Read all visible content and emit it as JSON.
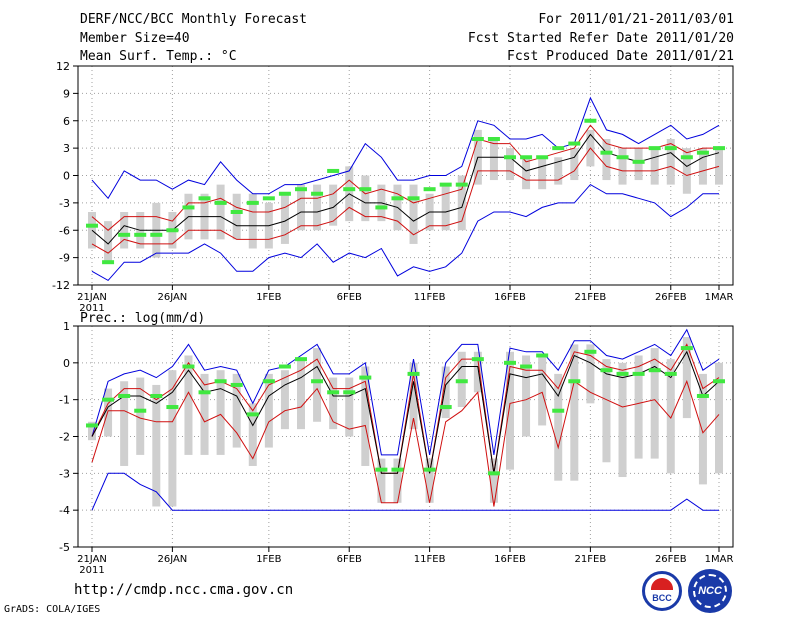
{
  "header": {
    "title": "DERF/NCC/BCC Monthly Forecast",
    "member_size": "Member Size=40",
    "variable": "Mean Surf. Temp.: °C",
    "period": "For 2011/01/21-2011/03/01",
    "started": "Fcst Started Refer Date 2011/01/20",
    "produced": "Fcst Produced Date 2011/01/21"
  },
  "x_axis": {
    "tick_labels": [
      "21JAN",
      "26JAN",
      "1FEB",
      "6FEB",
      "11FEB",
      "16FEB",
      "21FEB",
      "26FEB",
      "1MAR"
    ],
    "tick_days": [
      0,
      5,
      11,
      16,
      21,
      26,
      31,
      36,
      39
    ],
    "year_label": "2011"
  },
  "footer": {
    "url": "http://cmdp.ncc.cma.gov.cn",
    "credit": "GrADS: COLA/IGES",
    "logo_bcc": "BCC",
    "logo_ncc": "NCC"
  },
  "colors": {
    "mean": "#000000",
    "envelope": "#0000dd",
    "stddev": "#d01010",
    "spread_bar": "#cfcfcf",
    "obs_marker": "#40e840",
    "grid": "#a0a0a0"
  },
  "chart_data": [
    {
      "type": "line",
      "label": "",
      "xlabel": "",
      "ylabel": "",
      "ylim": [
        -12,
        12
      ],
      "yticks": [
        -12,
        -9,
        -6,
        -3,
        0,
        3,
        6,
        9,
        12
      ],
      "series": [
        {
          "name": "max",
          "values": [
            -0.5,
            -2.5,
            0.5,
            -0.5,
            -0.5,
            -1.5,
            -0.5,
            -1,
            1.5,
            -0.5,
            -2,
            -2,
            -1,
            -1,
            -0.5,
            0,
            0.5,
            3.5,
            2,
            -0.5,
            -0.5,
            0,
            0,
            1,
            6,
            5.5,
            4,
            4,
            4.5,
            3,
            3.5,
            8.5,
            5,
            4.5,
            3.5,
            4.5,
            5.5,
            4,
            4.5,
            5.5
          ]
        },
        {
          "name": "mean_plus_sd",
          "values": [
            -4.5,
            -6,
            -4.5,
            -4.5,
            -4.5,
            -5,
            -3,
            -3,
            -2.5,
            -3.5,
            -4,
            -4,
            -3.5,
            -2.5,
            -2.5,
            -2,
            -0.5,
            -2,
            -1.5,
            -2,
            -3,
            -2.5,
            -2,
            -1.5,
            4,
            3.5,
            3.5,
            1.5,
            2,
            2.5,
            3,
            5.5,
            3.5,
            3,
            3,
            3,
            3.5,
            2.5,
            3,
            3
          ]
        },
        {
          "name": "mean",
          "values": [
            -6,
            -7.5,
            -5.5,
            -6,
            -6,
            -6,
            -4.5,
            -4.5,
            -4.5,
            -5.5,
            -5.5,
            -5.5,
            -5,
            -4,
            -4,
            -3.5,
            -2,
            -3,
            -3,
            -3.5,
            -5,
            -4,
            -4,
            -3.5,
            2,
            2,
            2,
            0.5,
            1,
            1.5,
            2,
            4.5,
            2.5,
            2,
            1.5,
            2,
            2.5,
            1,
            2,
            2.5
          ]
        },
        {
          "name": "mean_minus_sd",
          "values": [
            -7.5,
            -8.5,
            -7,
            -7.5,
            -7.5,
            -7.5,
            -6,
            -6,
            -6,
            -7,
            -7,
            -7,
            -6.5,
            -5.5,
            -5.5,
            -5,
            -3.5,
            -4.5,
            -4.5,
            -5,
            -6.5,
            -5.5,
            -5.5,
            -5,
            0.5,
            0.5,
            0.5,
            -0.5,
            -0.5,
            -0.5,
            0.5,
            3,
            1,
            0.5,
            0.5,
            0.5,
            1,
            0,
            0.5,
            1
          ]
        },
        {
          "name": "min",
          "values": [
            -10.5,
            -11.5,
            -9.5,
            -9.5,
            -8.5,
            -8.5,
            -8.5,
            -7.5,
            -8.5,
            -10.5,
            -10.5,
            -9,
            -8.5,
            -9,
            -7.5,
            -9.5,
            -8.5,
            -9,
            -8,
            -11,
            -10,
            -10.5,
            -10,
            -8.5,
            -5,
            -4,
            -4,
            -4.5,
            -3.5,
            -3,
            -3,
            -1,
            -2,
            -2,
            -2.5,
            -3,
            -4.5,
            -3.5,
            -2,
            -2
          ]
        },
        {
          "name": "spread_low",
          "values": [
            -8,
            -9.5,
            -8,
            -8,
            -9,
            -8,
            -7,
            -7,
            -7,
            -7,
            -8,
            -8,
            -7.5,
            -6,
            -6,
            -5.5,
            -5,
            -5,
            -5,
            -6,
            -7.5,
            -6,
            -6,
            -6,
            -1,
            -0.5,
            -0.5,
            -1.5,
            -1.5,
            -1,
            -0.5,
            1,
            -0.5,
            -1,
            -0.5,
            -1,
            -1,
            -2,
            -1,
            -1
          ]
        },
        {
          "name": "spread_high",
          "values": [
            -4,
            -5,
            -4,
            -4,
            -3,
            -4,
            -2,
            -2,
            -1,
            -2,
            -2,
            -3,
            -2,
            -1,
            -1,
            -1,
            1,
            0,
            -1,
            -1,
            -1,
            -2,
            -1,
            0,
            5,
            4,
            3,
            2,
            2,
            2,
            3,
            5,
            4,
            3,
            3,
            3,
            4,
            3,
            3,
            3
          ]
        },
        {
          "name": "observed",
          "values": [
            -5.5,
            -9.5,
            -6.5,
            -6.5,
            -6.5,
            -6,
            -3.5,
            -2.5,
            -3,
            -4,
            -3,
            -2.5,
            -2,
            -1.5,
            -2,
            0.5,
            -1.5,
            -1.5,
            -3.5,
            -2.5,
            -2.5,
            -1.5,
            -1,
            -1,
            4,
            4,
            2,
            2,
            2,
            3,
            3.5,
            6,
            2.5,
            2,
            1.5,
            3,
            3,
            2,
            2.5,
            3
          ]
        }
      ]
    },
    {
      "type": "line",
      "label": "Prec.: log(mm/d)",
      "xlabel": "",
      "ylabel": "",
      "ylim": [
        -5,
        1
      ],
      "yticks": [
        -5,
        -4,
        -3,
        -2,
        -1,
        0,
        1
      ],
      "series": [
        {
          "name": "max",
          "values": [
            -2,
            -0.5,
            -0.3,
            -0.2,
            -0.4,
            -0.1,
            0.5,
            -0.2,
            -0.1,
            -0.2,
            -1.1,
            -0.2,
            -0.1,
            0.2,
            0.5,
            -0.3,
            -0.3,
            0,
            -2.5,
            -2.5,
            0.1,
            -2.5,
            0,
            0.5,
            0.5,
            -2.5,
            0.4,
            0.3,
            0.3,
            -0.2,
            0.6,
            0.6,
            0.2,
            0.1,
            0.3,
            0.5,
            0.2,
            0.9,
            -0.2,
            0.1
          ]
        },
        {
          "name": "mean_plus_sd",
          "values": [
            -2,
            -1.1,
            -0.7,
            -0.7,
            -1,
            -0.7,
            0,
            -0.6,
            -0.5,
            -0.7,
            -1.3,
            -0.6,
            -0.4,
            -0.2,
            0.1,
            -0.7,
            -0.7,
            -0.5,
            -3,
            -3,
            -0.3,
            -3,
            -0.4,
            0.1,
            0.1,
            -3,
            -0.1,
            -0.2,
            -0.2,
            -0.7,
            0.3,
            0.2,
            -0.1,
            -0.2,
            -0.1,
            0.1,
            -0.2,
            0.5,
            -0.7,
            -0.4
          ]
        },
        {
          "name": "mean",
          "values": [
            -2,
            -1.2,
            -0.9,
            -0.9,
            -1.1,
            -0.8,
            -0.2,
            -0.8,
            -0.7,
            -0.9,
            -1.7,
            -0.9,
            -0.6,
            -0.4,
            -0.1,
            -0.9,
            -0.9,
            -0.7,
            -3,
            -3,
            -0.5,
            -3,
            -0.6,
            -0.1,
            -0.1,
            -3,
            -0.3,
            -0.4,
            -0.3,
            -0.9,
            0.2,
            0,
            -0.3,
            -0.4,
            -0.3,
            -0.1,
            -0.4,
            0.3,
            -0.9,
            -0.5
          ]
        },
        {
          "name": "mean_minus_sd",
          "values": [
            -2.7,
            -1.3,
            -1.3,
            -1.5,
            -1.6,
            -1.6,
            -0.8,
            -1.6,
            -1.4,
            -1.9,
            -2.6,
            -1.6,
            -1.3,
            -1.2,
            -0.7,
            -1.6,
            -1.8,
            -1.7,
            -3.8,
            -3.8,
            -1.5,
            -3.8,
            -1.6,
            -1.3,
            -0.8,
            -3.9,
            -1.1,
            -1,
            -0.8,
            -2.3,
            -0.5,
            -0.8,
            -1,
            -1.2,
            -1.1,
            -1,
            -1.5,
            -0.5,
            -1.9,
            -1.4
          ]
        },
        {
          "name": "min",
          "values": [
            -4,
            -3,
            -3,
            -3.3,
            -3.5,
            -4,
            -4,
            -4,
            -4,
            -4,
            -4,
            -4,
            -4,
            -4,
            -4,
            -4,
            -4,
            -4,
            -4,
            -4,
            -4,
            -4,
            -4,
            -4,
            -4,
            -4,
            -4,
            -4,
            -4,
            -4,
            -4,
            -4,
            -4,
            -4,
            -4,
            -4,
            -4,
            -3.7,
            -4,
            -4
          ]
        },
        {
          "name": "spread_low",
          "values": [
            -2.1,
            -2,
            -2.8,
            -2.5,
            -3.9,
            -3.9,
            -2.5,
            -2.5,
            -2.5,
            -2.3,
            -2.8,
            -2.3,
            -1.8,
            -1.8,
            -1.6,
            -1.8,
            -2,
            -2.8,
            -3.8,
            -3.8,
            -1.8,
            -3.8,
            -1.5,
            -1.2,
            -0.8,
            -3.8,
            -2.9,
            -2,
            -1.7,
            -3.2,
            -3.2,
            -1.1,
            -2.7,
            -3.1,
            -2.6,
            -2.6,
            -3,
            -1.5,
            -3.3,
            -3
          ]
        },
        {
          "name": "spread_high",
          "values": [
            -1.6,
            -0.7,
            -0.5,
            -0.4,
            -0.6,
            -0.2,
            0.2,
            -0.3,
            -0.2,
            -0.3,
            -1.1,
            -0.3,
            -0.2,
            0.1,
            0.4,
            -0.4,
            -0.4,
            -0.1,
            -2.6,
            -2.6,
            0,
            -2.6,
            -0.1,
            0.3,
            0.3,
            -2.6,
            0.3,
            0.2,
            0.2,
            -0.3,
            0.5,
            0.5,
            0.1,
            0,
            0.2,
            0.4,
            0.1,
            0.7,
            -0.3,
            0
          ]
        },
        {
          "name": "observed",
          "values": [
            -1.7,
            -1,
            -0.9,
            -1.3,
            -0.9,
            -1.2,
            -0.1,
            -0.8,
            -0.5,
            -0.6,
            -1.4,
            -0.5,
            -0.1,
            0.1,
            -0.5,
            -0.8,
            -0.8,
            -0.4,
            -2.9,
            -2.9,
            -0.3,
            -2.9,
            -1.2,
            -0.5,
            0.1,
            -3,
            0,
            -0.1,
            0.2,
            -1.3,
            -0.5,
            0.3,
            -0.2,
            -0.3,
            -0.3,
            -0.2,
            -0.3,
            0.4,
            -0.9,
            -0.5
          ]
        }
      ]
    }
  ]
}
